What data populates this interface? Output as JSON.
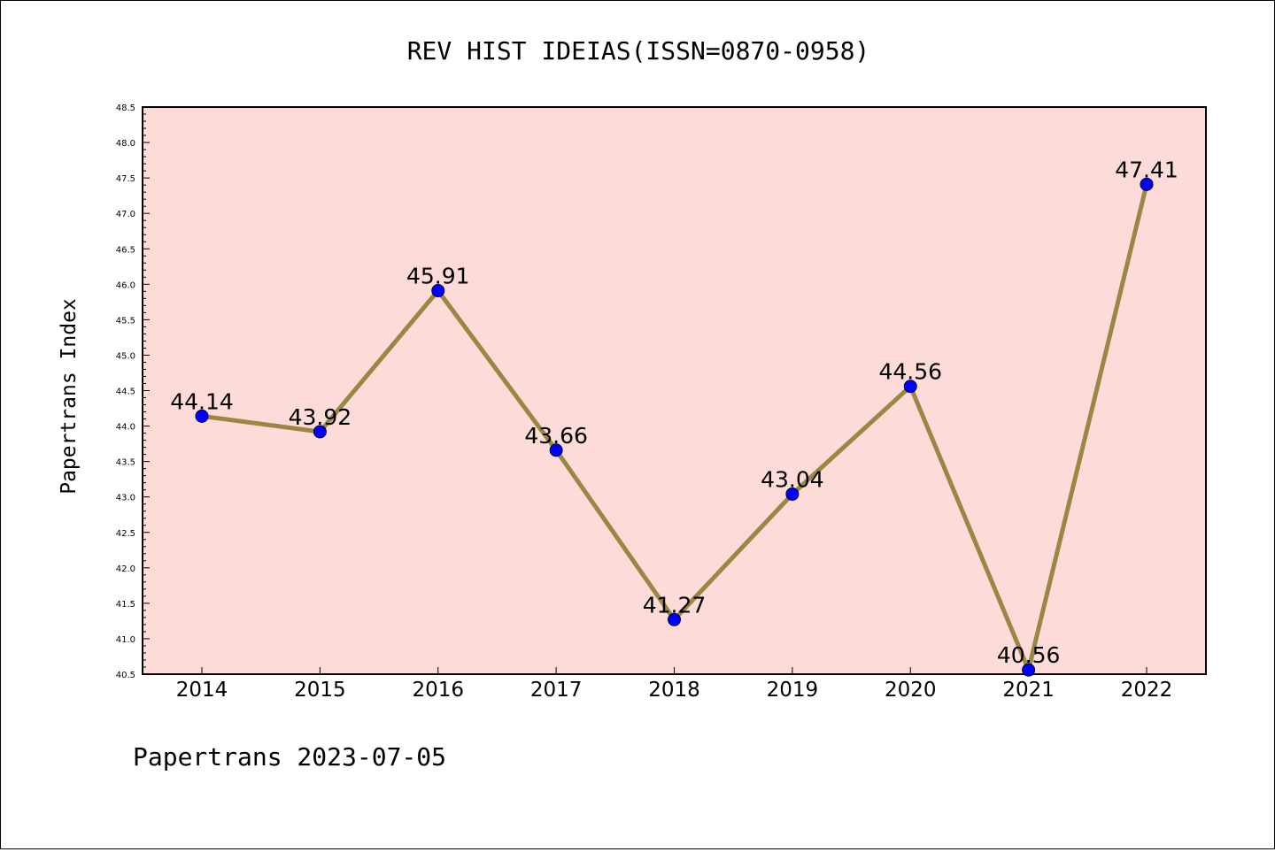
{
  "chart_data": {
    "type": "line",
    "title": "REV HIST IDEIAS(ISSN=0870-0958)",
    "xlabel": "",
    "ylabel": "Papertrans Index",
    "footer": "Papertrans 2023-07-05",
    "categories": [
      "2014",
      "2015",
      "2016",
      "2017",
      "2018",
      "2019",
      "2020",
      "2021",
      "2022"
    ],
    "values": [
      44.14,
      43.92,
      45.91,
      43.66,
      41.27,
      43.04,
      44.56,
      40.56,
      47.41
    ],
    "labels": [
      "44.14",
      "43.92",
      "45.91",
      "43.66",
      "41.27",
      "43.04",
      "44.56",
      "40.56",
      "47.41"
    ],
    "ylim": [
      40.5,
      48.5
    ],
    "yticks": [
      "40.5",
      "41.0",
      "41.5",
      "42.0",
      "42.5",
      "43.0",
      "43.5",
      "44.0",
      "44.5",
      "45.0",
      "45.5",
      "46.0",
      "46.5",
      "47.0",
      "47.5",
      "48.0",
      "48.5"
    ],
    "grid": false,
    "colors": {
      "plot_background": "#fddbd8",
      "line": "#998844",
      "marker": "#0000ff"
    }
  }
}
